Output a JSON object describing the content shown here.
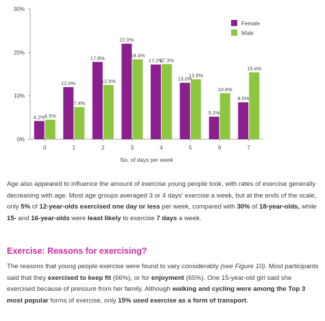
{
  "chart_data": {
    "type": "bar",
    "categories": [
      "0",
      "1",
      "2",
      "3",
      "4",
      "5",
      "6",
      "7"
    ],
    "series": [
      {
        "name": "Female",
        "color": "#8b1f8e",
        "values": [
          4.2,
          12.0,
          17.8,
          22.0,
          17.2,
          13.0,
          5.2,
          8.5
        ],
        "labels": [
          "4.2%",
          "12.0%",
          "17.8%",
          "22.0%",
          "17.2%",
          "13.0%",
          "5.2%",
          "8.5%"
        ]
      },
      {
        "name": "Male",
        "color": "#8dc63f",
        "values": [
          4.5,
          7.4,
          12.5,
          18.4,
          17.3,
          13.8,
          10.6,
          15.4
        ],
        "labels": [
          "4.5%",
          "7.4%",
          "12.5%",
          "18.4%",
          "17.3%",
          "13.8%",
          "10.6%",
          "15.4%"
        ]
      }
    ],
    "xlabel": "No. of days per week",
    "ylabel": "",
    "ylim": [
      0,
      30
    ],
    "yticks": [
      0,
      10,
      20,
      30
    ],
    "ytick_labels": [
      "0%",
      "10%",
      "20%",
      "30%"
    ],
    "grid": false,
    "legend_position": "top-right"
  },
  "text": {
    "para1": {
      "a": "Age also appeared to influence the amount of exercise young people took, with rates of exercise generally decreasing with age. Most age groups averaged 3 or 4 days' exercise a week, but at the ends of the scale, only ",
      "b1": "5%",
      "c": " of ",
      "b2": "12-year-olds exercised one day or less",
      "d": " per week, compared with ",
      "b3": "30%",
      "e": " of ",
      "b4": "18-year-olds,",
      "f": " while ",
      "b5": "15-",
      "g": " and ",
      "b6": "16-year-olds",
      "h": " were ",
      "b7": "least likely",
      "i": " to exercise ",
      "b8": "7 days",
      "j": " a week."
    },
    "heading": "Exercise: Reasons for exercising?",
    "para2": {
      "a": "The reasons that young people exercise were found to vary considerably ",
      "it1": "(see Figure 10).",
      "b": " Most participants said that they ",
      "b1": "exercised to keep fit",
      "c": " (66%), or for ",
      "b2": "enjoyment",
      "d": " (65%). One 15-year-old girl said she exercised because of pressure from her family. Although ",
      "b3": "walking and cycling were among the Top 3 most popular",
      "e": " forms of exercise, only ",
      "b4": "15% used exercise as a form of transport",
      "f": "."
    }
  }
}
